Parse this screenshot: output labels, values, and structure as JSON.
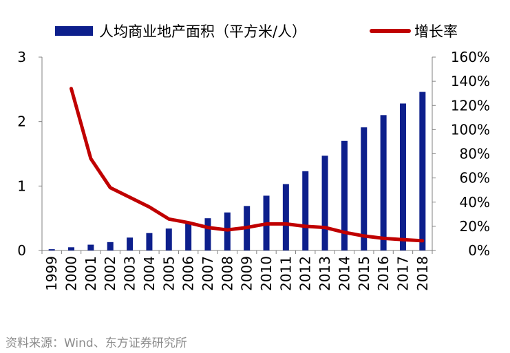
{
  "chart_data": {
    "type": "bar+line",
    "categories": [
      "1999",
      "2000",
      "2001",
      "2002",
      "2003",
      "2004",
      "2005",
      "2006",
      "2007",
      "2008",
      "2009",
      "2010",
      "2011",
      "2012",
      "2013",
      "2014",
      "2015",
      "2016",
      "2017",
      "2018"
    ],
    "series": [
      {
        "name": "人均商业地产面积（平方米/人）",
        "type": "bar",
        "axis": "left",
        "color": "#0d1f8c",
        "values": [
          0.02,
          0.05,
          0.09,
          0.13,
          0.2,
          0.27,
          0.34,
          0.42,
          0.5,
          0.59,
          0.69,
          0.85,
          1.03,
          1.23,
          1.47,
          1.7,
          1.91,
          2.1,
          2.28,
          2.46
        ]
      },
      {
        "name": "增长率",
        "type": "line",
        "axis": "right",
        "color": "#c00000",
        "values": [
          null,
          1.34,
          0.76,
          0.52,
          0.44,
          0.36,
          0.26,
          0.23,
          0.19,
          0.17,
          0.19,
          0.22,
          0.22,
          0.2,
          0.19,
          0.15,
          0.12,
          0.1,
          0.09,
          0.08
        ]
      }
    ],
    "ylim_left": [
      0,
      3
    ],
    "yticks_left": [
      "0",
      "1",
      "2",
      "3"
    ],
    "ylim_right": [
      0,
      1.6
    ],
    "yticks_right": [
      "0%",
      "20%",
      "40%",
      "60%",
      "80%",
      "100%",
      "120%",
      "140%",
      "160%"
    ],
    "grid": false,
    "legend_position": "top"
  },
  "source": "资料来源：Wind、东方证券研究所"
}
